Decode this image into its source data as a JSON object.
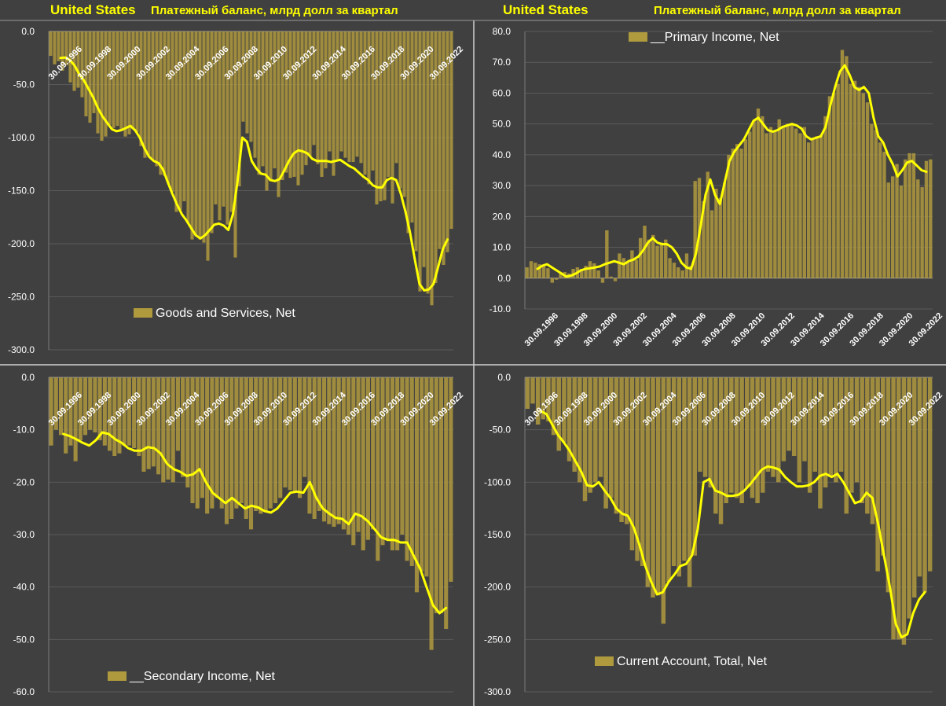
{
  "header": {
    "left": {
      "country": "United States",
      "subtitle": "Платежный баланс, млрд долл за квартал"
    },
    "right": {
      "country": "United States",
      "subtitle": "Платежный баланс, млрд долл за квартал"
    }
  },
  "colors": {
    "bar": "#b09a3e",
    "bar_stroke": "#8a7a32",
    "line": "#ffff00",
    "background": "#404040",
    "text": "#ffffff"
  },
  "chart_data": [
    {
      "type": "bar",
      "series": [
        {
          "name": "Goods and Services, Net",
          "values": [
            -23,
            -31,
            -28,
            -37,
            -32,
            -48,
            -56,
            -53,
            -62,
            -80,
            -86,
            -77,
            -96,
            -103,
            -99,
            -88,
            -91,
            -89,
            -93,
            -99,
            -97,
            -92,
            -95,
            -108,
            -119,
            -118,
            -121,
            -127,
            -135,
            -136,
            -144,
            -151,
            -170,
            -168,
            -160,
            -181,
            -196,
            -193,
            -196,
            -199,
            -216,
            -190,
            -163,
            -178,
            -165,
            -182,
            -170,
            -213,
            -146,
            -85,
            -96,
            -104,
            -119,
            -135,
            -127,
            -150,
            -140,
            -129,
            -156,
            -140,
            -133,
            -138,
            -137,
            -145,
            -135,
            -126,
            -117,
            -107,
            -125,
            -137,
            -129,
            -113,
            -136,
            -121,
            -113,
            -119,
            -123,
            -123,
            -118,
            -124,
            -135,
            -144,
            -131,
            -163,
            -160,
            -159,
            -137,
            -162,
            -124,
            -148,
            -156,
            -190,
            -180,
            -207,
            -245,
            -222,
            -247,
            -258,
            -237,
            -205,
            -220,
            -208,
            -186
          ]
        },
        {
          "name": "Moving average",
          "values": [
            -25,
            -24.5,
            -27,
            -32,
            -40,
            -46,
            -54,
            -62,
            -72,
            -80,
            -86,
            -92,
            -94,
            -93,
            -91,
            -89,
            -93,
            -100,
            -110,
            -118,
            -122,
            -124,
            -130,
            -142,
            -153,
            -163,
            -172,
            -178,
            -185,
            -192,
            -195,
            -192,
            -187,
            -182,
            -181,
            -183,
            -187,
            -172,
            -140,
            -100,
            -104,
            -122,
            -129,
            -134,
            -135,
            -140,
            -141,
            -139,
            -131,
            -122,
            -115,
            -112,
            -113,
            -115,
            -120,
            -122,
            -122,
            -122,
            -123,
            -122,
            -121,
            -124,
            -127,
            -129,
            -133,
            -137,
            -140,
            -145,
            -147,
            -147,
            -140,
            -138,
            -140,
            -153,
            -170,
            -190,
            -215,
            -238,
            -244,
            -243,
            -238,
            -222,
            -205,
            -196
          ]
        }
      ],
      "ylim": [
        -300,
        0
      ],
      "yticks": [
        "0.0",
        "-50.0",
        "-100.0",
        "-150.0",
        "-200.0",
        "-250.0",
        "-300.0"
      ],
      "xticks": [
        "30.09.1996",
        "30.09.1998",
        "30.09.2000",
        "30.09.2002",
        "30.09.2004",
        "30.09.2006",
        "30.09.2008",
        "30.09.2010",
        "30.09.2012",
        "30.09.2014",
        "30.09.2016",
        "30.09.2018",
        "30.09.2020",
        "30.09.2022"
      ],
      "legend": "Goods and Services, Net",
      "legend_placement": "bottom-center",
      "grid": true
    },
    {
      "type": "bar",
      "series": [
        {
          "name": "__Primary Income, Net",
          "values": [
            3.5,
            5.5,
            5,
            4.5,
            3.8,
            3.2,
            -1.5,
            -0.5,
            1.5,
            2,
            1.5,
            3,
            3.5,
            3,
            4,
            5.5,
            4.8,
            2.5,
            -1.5,
            15.5,
            0.5,
            -1,
            8,
            6.5,
            5.5,
            9,
            6,
            13,
            17,
            12.5,
            14,
            10.5,
            11.5,
            12.5,
            6.5,
            5,
            3.5,
            2.5,
            8,
            4,
            31.5,
            32.5,
            25,
            34.5,
            22,
            29,
            26,
            31,
            40,
            42,
            43.5,
            42,
            45,
            47.5,
            51,
            55,
            52.5,
            47,
            49,
            48,
            51.5,
            49,
            50,
            50,
            48.5,
            47,
            49,
            44,
            45.5,
            46,
            46.5,
            52.5,
            59,
            60,
            63,
            74,
            72,
            63,
            64,
            62,
            60,
            57,
            50,
            48,
            44,
            41,
            31,
            33,
            37,
            30,
            38.5,
            40.5,
            40.5,
            32,
            29.5,
            38,
            38.5
          ]
        },
        {
          "name": "Moving average",
          "values": [
            3,
            4,
            4.5,
            3.5,
            2.5,
            1.5,
            0.5,
            0.8,
            1.5,
            2.5,
            3,
            3.2,
            3.5,
            3.8,
            4.5,
            5,
            5.5,
            5,
            4.5,
            5.5,
            6,
            7,
            9,
            11.5,
            13,
            11.5,
            11,
            11,
            10,
            8,
            5,
            3.5,
            3,
            8,
            17,
            27,
            32,
            27,
            24,
            31,
            38,
            41,
            43,
            45,
            48,
            51,
            52,
            50,
            48,
            47.5,
            48,
            49,
            49.5,
            50,
            49.5,
            48.5,
            46,
            45,
            45.5,
            46,
            49,
            56,
            62,
            67,
            69,
            66,
            62,
            61,
            62,
            60,
            52,
            46,
            44,
            40,
            37,
            33,
            35,
            37.5,
            38,
            36.5,
            35,
            34.5
          ]
        }
      ],
      "ylim": [
        -10,
        80
      ],
      "yticks": [
        "80.0",
        "70.0",
        "60.0",
        "50.0",
        "40.0",
        "30.0",
        "20.0",
        "10.0",
        "0.0",
        "-10.0"
      ],
      "xticks": [
        "30.09.1996",
        "30.09.1998",
        "30.09.2000",
        "30.09.2002",
        "30.09.2004",
        "30.09.2006",
        "30.09.2008",
        "30.09.2010",
        "30.09.2012",
        "30.09.2014",
        "30.09.2016",
        "30.09.2018",
        "30.09.2020",
        "30.09.2022"
      ],
      "legend": "__Primary Income, Net",
      "legend_placement": "top-center",
      "grid": true
    },
    {
      "type": "bar",
      "series": [
        {
          "name": "__Secondary Income, Net",
          "values": [
            -13,
            -10,
            -11,
            -14.5,
            -13,
            -16,
            -12,
            -11,
            -10,
            -10.5,
            -12,
            -13,
            -14,
            -15,
            -14.5,
            -13,
            -13,
            -13.5,
            -15,
            -18,
            -17.5,
            -17,
            -18.5,
            -20,
            -19.5,
            -20,
            -14,
            -19,
            -21,
            -24,
            -25,
            -23,
            -26,
            -25,
            -23,
            -25,
            -28,
            -27,
            -25,
            -24,
            -27,
            -29,
            -25.5,
            -26,
            -25.5,
            -25,
            -24,
            -23,
            -21,
            -21.5,
            -22,
            -23,
            -19,
            -26,
            -27,
            -25.5,
            -27.5,
            -28,
            -28.5,
            -28,
            -29,
            -30,
            -32,
            -29.5,
            -33,
            -31,
            -29,
            -35,
            -32,
            -31,
            -33,
            -33,
            -30,
            -35,
            -36,
            -41,
            -37,
            -38,
            -52,
            -45,
            -45,
            -48,
            -39
          ]
        },
        {
          "name": "Moving average",
          "values": [
            -10.8,
            -11.2,
            -11.8,
            -12.5,
            -13,
            -12,
            -10.5,
            -10.8,
            -11.8,
            -12.5,
            -13.5,
            -14,
            -14,
            -13.3,
            -13.5,
            -14.5,
            -16.5,
            -17.5,
            -18,
            -18.8,
            -18.5,
            -17.5,
            -20,
            -22,
            -23,
            -24,
            -23,
            -24,
            -25,
            -24.5,
            -24.8,
            -25.5,
            -25.8,
            -25,
            -23.5,
            -22,
            -21.8,
            -22,
            -20,
            -23,
            -25,
            -26,
            -26.8,
            -27,
            -28,
            -26,
            -26.5,
            -27.5,
            -29,
            -30.5,
            -31,
            -31,
            -31.5,
            -31.5,
            -34,
            -36.5,
            -40,
            -43.5,
            -45,
            -44
          ]
        }
      ],
      "ylim": [
        -60,
        0
      ],
      "yticks": [
        "0.0",
        "-10.0",
        "-20.0",
        "-30.0",
        "-40.0",
        "-50.0",
        "-60.0"
      ],
      "xticks": [
        "30.09.1996",
        "30.09.1998",
        "30.09.2000",
        "30.09.2002",
        "30.09.2004",
        "30.09.2006",
        "30.09.2008",
        "30.09.2010",
        "30.09.2012",
        "30.09.2014",
        "30.09.2016",
        "30.09.2018",
        "30.09.2020",
        "30.09.2022"
      ],
      "legend": "__Secondary Income, Net",
      "legend_placement": "bottom-center",
      "grid": true
    },
    {
      "type": "bar",
      "series": [
        {
          "name": "Current Account, Total, Net",
          "values": [
            -30,
            -25,
            -45,
            -40,
            -42,
            -55,
            -70,
            -62,
            -80,
            -90,
            -100,
            -118,
            -110,
            -100,
            -95,
            -125,
            -115,
            -130,
            -138,
            -140,
            -165,
            -175,
            -180,
            -200,
            -210,
            -208,
            -235,
            -195,
            -180,
            -190,
            -175,
            -200,
            -170,
            -90,
            -95,
            -105,
            -130,
            -140,
            -120,
            -110,
            -115,
            -120,
            -105,
            -115,
            -120,
            -110,
            -90,
            -95,
            -100,
            -80,
            -70,
            -75,
            -100,
            -80,
            -110,
            -90,
            -125,
            -105,
            -95,
            -100,
            -90,
            -130,
            -110,
            -100,
            -120,
            -130,
            -140,
            -185,
            -170,
            -205,
            -250,
            -250,
            -255,
            -230,
            -210,
            -190,
            -205,
            -185
          ]
        },
        {
          "name": "Moving average",
          "values": [
            -32,
            -35,
            -45,
            -55,
            -62,
            -70,
            -80,
            -90,
            -103,
            -104,
            -100,
            -108,
            -115,
            -125,
            -130,
            -132,
            -143,
            -160,
            -180,
            -195,
            -207,
            -205,
            -195,
            -188,
            -180,
            -178,
            -170,
            -145,
            -100,
            -97,
            -108,
            -110,
            -113,
            -113,
            -112,
            -108,
            -102,
            -95,
            -88,
            -85,
            -86,
            -88,
            -95,
            -100,
            -104,
            -104,
            -103,
            -100,
            -94,
            -92,
            -95,
            -92,
            -100,
            -110,
            -120,
            -118,
            -110,
            -115,
            -140,
            -170,
            -200,
            -235,
            -248,
            -245,
            -225,
            -212,
            -205
          ]
        }
      ],
      "ylim": [
        -300,
        0
      ],
      "yticks": [
        "0.0",
        "-50.0",
        "-100.0",
        "-150.0",
        "-200.0",
        "-250.0",
        "-300.0"
      ],
      "xticks": [
        "30.09.1996",
        "30.09.1998",
        "30.09.2000",
        "30.09.2002",
        "30.09.2004",
        "30.09.2006",
        "30.09.2008",
        "30.09.2010",
        "30.09.2012",
        "30.09.2014",
        "30.09.2016",
        "30.09.2018",
        "30.09.2020",
        "30.09.2022"
      ],
      "legend": "Current Account, Total, Net",
      "legend_placement": "bottom-center",
      "grid": true
    }
  ]
}
